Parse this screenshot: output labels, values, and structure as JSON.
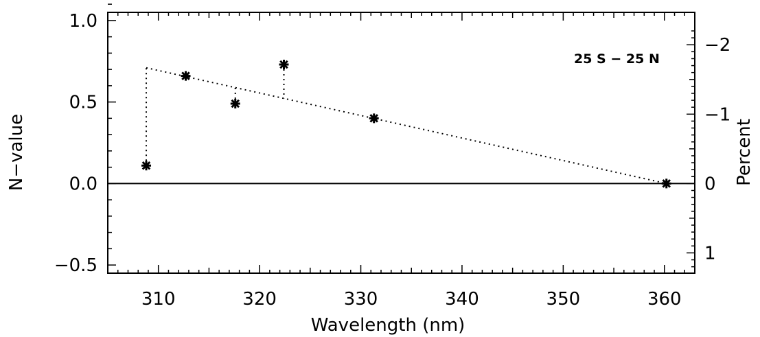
{
  "chart_data": {
    "type": "scatter",
    "xlabel": "Wavelength (nm)",
    "ylabel": "N−value",
    "y2label": "Percent",
    "annotation": "25 S − 25 N",
    "xlim": [
      305,
      363
    ],
    "ylim": [
      -0.55,
      1.05
    ],
    "x_ticks": [
      310,
      320,
      330,
      340,
      350,
      360
    ],
    "x_tick_labels": [
      "310",
      "320",
      "330",
      "340",
      "350",
      "360"
    ],
    "y_ticks": [
      -0.5,
      0.0,
      0.5,
      1.0
    ],
    "y_tick_labels": [
      "−0.5",
      "0.0",
      "0.5",
      "1.0"
    ],
    "y2_ticks": [
      -2,
      -1,
      0,
      1
    ],
    "y2_tick_labels": [
      "−2",
      "−1",
      "0",
      "1"
    ],
    "y2_per_y": -2.35,
    "zero_line": 0,
    "points": [
      {
        "x": 308.8,
        "y": 0.11
      },
      {
        "x": 312.7,
        "y": 0.66
      },
      {
        "x": 317.6,
        "y": 0.49
      },
      {
        "x": 322.4,
        "y": 0.73
      },
      {
        "x": 331.3,
        "y": 0.4
      },
      {
        "x": 360.2,
        "y": 0.0
      }
    ],
    "fit_line": {
      "type": "dotted",
      "x": [
        308.8,
        360.2
      ],
      "y": [
        0.71,
        0.0
      ]
    }
  }
}
